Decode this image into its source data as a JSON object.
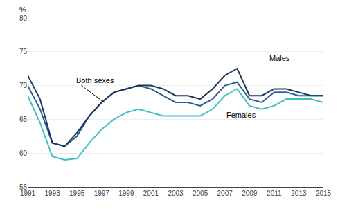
{
  "chart_data": {
    "type": "line",
    "ylabel": "%",
    "x": [
      1991,
      1992,
      1993,
      1994,
      1995,
      1996,
      1997,
      1998,
      1999,
      2000,
      2001,
      2002,
      2003,
      2004,
      2005,
      2006,
      2007,
      2008,
      2009,
      2010,
      2011,
      2012,
      2013,
      2014,
      2015
    ],
    "series": [
      {
        "color": "#1b3460",
        "values": [
          71.5,
          68.0,
          61.5,
          61.0,
          63.0,
          65.5,
          67.5,
          69.0,
          69.5,
          70.0,
          70.0,
          69.5,
          68.5,
          68.5,
          68.0,
          69.5,
          71.5,
          72.5,
          68.5,
          68.5,
          69.5,
          69.5,
          69.0,
          68.5,
          68.5
        ]
      },
      {
        "color": "#2b6098",
        "values": [
          70.0,
          66.5,
          61.5,
          61.0,
          62.5,
          65.5,
          67.5,
          69.0,
          69.5,
          70.0,
          69.5,
          68.5,
          67.5,
          67.5,
          67.0,
          68.0,
          70.0,
          70.5,
          68.0,
          67.5,
          69.0,
          69.0,
          68.5,
          68.5,
          68.5
        ]
      },
      {
        "color": "#40c0c0",
        "values": [
          68.5,
          64.5,
          59.5,
          59.0,
          59.2,
          61.5,
          63.5,
          65.0,
          66.0,
          66.5,
          66.0,
          65.5,
          65.5,
          65.5,
          65.5,
          66.5,
          68.5,
          69.5,
          67.0,
          66.5,
          67.0,
          68.0,
          68.0,
          68.0,
          67.5
        ]
      }
    ],
    "xlim": [
      1991,
      2015
    ],
    "xticks": [
      1991,
      1993,
      1995,
      1997,
      1999,
      2001,
      2003,
      2005,
      2007,
      2009,
      2011,
      2013,
      2015
    ],
    "ylim": [
      55,
      80
    ],
    "yticks": [
      55,
      60,
      65,
      70,
      75,
      80
    ],
    "grid": "y",
    "annotations": [
      {
        "text": "Both sexes",
        "x": 1997.2,
        "y": 67.5,
        "text_x": 1994.8,
        "text_y": 70.8
      },
      {
        "text": "Males",
        "x": 2010.5,
        "y": 73.2
      },
      {
        "text": "Females",
        "x": 2007.0,
        "y": 66.5
      }
    ]
  }
}
